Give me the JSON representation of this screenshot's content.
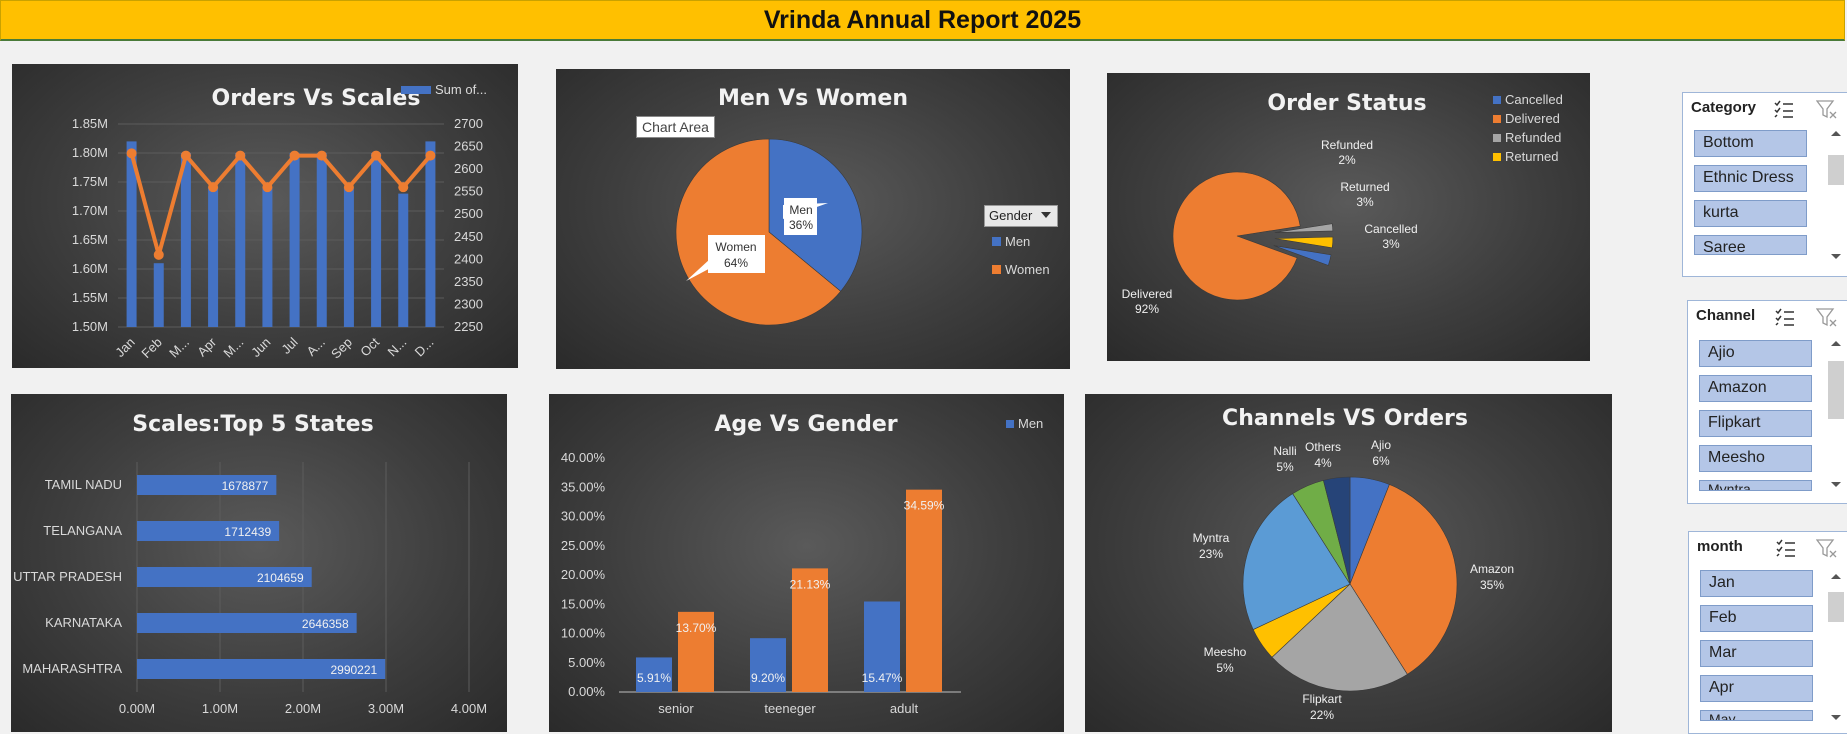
{
  "report_title": "Vrinda Annual Report 2025",
  "orders_vs_sales": {
    "title": "Orders Vs Scales",
    "legend": "Sum of...",
    "left_ticks": [
      "1.85M",
      "1.80M",
      "1.75M",
      "1.70M",
      "1.65M",
      "1.60M",
      "1.55M",
      "1.50M"
    ],
    "right_ticks": [
      "2700",
      "2650",
      "2600",
      "2550",
      "2500",
      "2450",
      "2400",
      "2350",
      "2300",
      "2250"
    ],
    "months": [
      "Jan",
      "Feb",
      "M...",
      "Apr",
      "M...",
      "Jun",
      "Jul",
      "A...",
      "Sep",
      "Oct",
      "N...",
      "D..."
    ]
  },
  "men_vs_women": {
    "title": "Men Vs Women",
    "chart_area_label": "Chart Area",
    "dropdown": "Gender",
    "legend": [
      "Men",
      "Women"
    ],
    "labels": {
      "men_name": "Men",
      "men_pct": "36%",
      "women_name": "Women",
      "women_pct": "64%"
    }
  },
  "order_status": {
    "title": "Order Status",
    "legend": [
      "Cancelled",
      "Delivered",
      "Refunded",
      "Returned"
    ],
    "labels": {
      "refunded": "Refunded",
      "refunded_pct": "2%",
      "returned": "Returned",
      "returned_pct": "3%",
      "cancelled": "Cancelled",
      "cancelled_pct": "3%",
      "delivered": "Delivered",
      "delivered_pct": "92%"
    }
  },
  "top_states": {
    "title": "Scales:Top 5 States",
    "x_ticks": [
      "0.00M",
      "1.00M",
      "2.00M",
      "3.00M",
      "4.00M"
    ]
  },
  "age_vs_gender": {
    "title": "Age Vs Gender",
    "legend": "Men",
    "y_ticks": [
      "40.00%",
      "35.00%",
      "30.00%",
      "25.00%",
      "20.00%",
      "15.00%",
      "10.00%",
      "5.00%",
      "0.00%"
    ]
  },
  "channels_vs_orders": {
    "title": "Channels VS Orders"
  },
  "slicers": {
    "category": {
      "title": "Category",
      "items": [
        "Bottom",
        "Ethnic Dress",
        "kurta",
        "Saree"
      ]
    },
    "channel": {
      "title": "Channel",
      "items": [
        "Ajio",
        "Amazon",
        "Flipkart",
        "Meesho",
        "Myntra"
      ]
    },
    "month": {
      "title": "month",
      "items": [
        "Jan",
        "Feb",
        "Mar",
        "Apr",
        "May"
      ]
    }
  },
  "chart_data": [
    {
      "type": "bar",
      "name": "Orders Vs Scales",
      "categories": [
        "Jan",
        "Feb",
        "M...",
        "Apr",
        "M...",
        "Jun",
        "Jul",
        "A...",
        "Sep",
        "Oct",
        "N...",
        "D..."
      ],
      "series": [
        {
          "name": "Sum of...",
          "kind": "bar",
          "axis": "left",
          "values": [
            1.82,
            1.61,
            1.8,
            1.74,
            1.8,
            1.74,
            1.8,
            1.8,
            1.74,
            1.8,
            1.73,
            1.82
          ]
        },
        {
          "kind": "line",
          "axis": "right",
          "values": [
            2635,
            2410,
            2630,
            2560,
            2630,
            2560,
            2630,
            2630,
            2560,
            2630,
            2560,
            2630
          ]
        }
      ],
      "ylim_left": [
        1.5,
        1.85
      ],
      "ylim_right": [
        2250,
        2700
      ],
      "colors": [
        "#4472c4",
        "#ed7d31"
      ]
    },
    {
      "type": "pie",
      "name": "Men Vs Women",
      "labels": [
        "Men",
        "Women"
      ],
      "values": [
        36,
        64
      ],
      "colors": [
        "#4472c4",
        "#ed7d31"
      ]
    },
    {
      "type": "pie",
      "name": "Order Status",
      "labels": [
        "Cancelled",
        "Delivered",
        "Refunded",
        "Returned"
      ],
      "values": [
        3,
        92,
        2,
        3
      ],
      "colors": [
        "#4472c4",
        "#ed7d31",
        "#a5a5a5",
        "#ffc000"
      ]
    },
    {
      "type": "bar",
      "name": "Scales:Top 5 States",
      "orientation": "horizontal",
      "categories": [
        "TAMIL NADU",
        "TELANGANA",
        "UTTAR PRADESH",
        "KARNATAKA",
        "MAHARASHTRA"
      ],
      "values": [
        1678877,
        1712439,
        2104659,
        2646358,
        2990221
      ],
      "xlim": [
        0,
        4000000
      ],
      "colors": [
        "#4472c4"
      ]
    },
    {
      "type": "bar",
      "name": "Age Vs Gender",
      "categories": [
        "senior",
        "teeneger",
        "adult"
      ],
      "series": [
        {
          "name": "Men",
          "values": [
            5.91,
            9.2,
            15.47
          ]
        },
        {
          "values": [
            13.7,
            21.13,
            34.59
          ]
        }
      ],
      "value_labels": [
        [
          "5.91%",
          "9.20%",
          "15.47%"
        ],
        [
          "13.70%",
          "21.13%",
          "34.59%"
        ]
      ],
      "ylim": [
        0,
        40
      ],
      "colors": [
        "#4472c4",
        "#ed7d31"
      ]
    },
    {
      "type": "pie",
      "name": "Channels VS Orders",
      "labels": [
        "Ajio",
        "Amazon",
        "Flipkart",
        "Meesho",
        "Myntra",
        "Nalli",
        "Others"
      ],
      "values": [
        6,
        35,
        22,
        5,
        23,
        5,
        4
      ],
      "value_labels": [
        "6%",
        "35%",
        "22%",
        "5%",
        "23%",
        "5%",
        "4%"
      ],
      "colors": [
        "#4472c4",
        "#ed7d31",
        "#a5a5a5",
        "#ffc000",
        "#5b9bd5",
        "#70ad47",
        "#264478"
      ]
    }
  ]
}
